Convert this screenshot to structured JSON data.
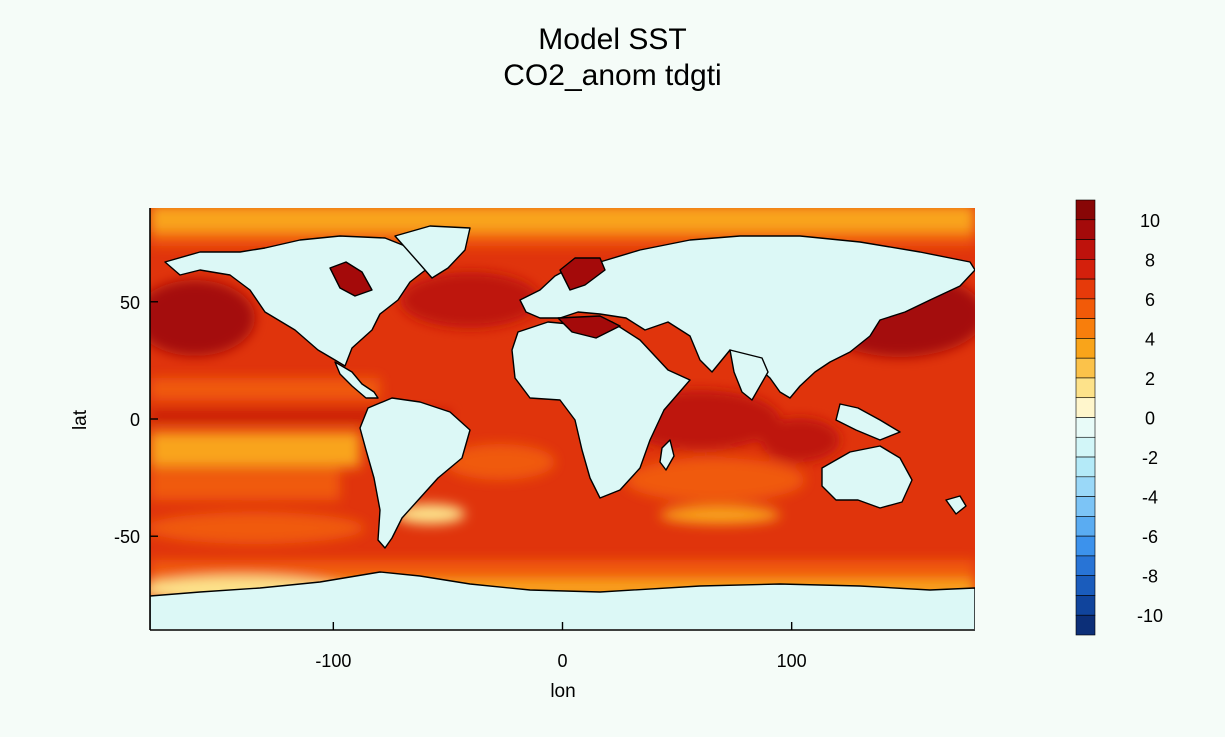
{
  "title": "Model SST",
  "subtitle": "CO2_anom tdgti",
  "chart_data": {
    "type": "heatmap",
    "title": "Model SST",
    "subtitle": "CO2_anom tdgti",
    "xlabel": "lon",
    "ylabel": "lat",
    "xlim": [
      -180,
      180
    ],
    "ylim": [
      -90,
      90
    ],
    "xticks": [
      -100,
      0,
      100
    ],
    "yticks": [
      -50,
      0,
      50
    ],
    "xtick_labels": [
      "-100",
      "0",
      "100"
    ],
    "ytick_labels": [
      "-50",
      "0",
      "50"
    ],
    "colorbar": {
      "levels": [
        -11,
        -10,
        -9,
        -8,
        -7,
        -6,
        -5,
        -4,
        -3,
        -2,
        -1,
        0,
        1,
        2,
        3,
        4,
        5,
        6,
        7,
        8,
        9,
        10,
        11
      ],
      "colors": [
        "#0c2f78",
        "#10449c",
        "#1a5cbc",
        "#2874d6",
        "#3c92ec",
        "#5aacf2",
        "#7cc4f6",
        "#9ad8f8",
        "#b4eaf8",
        "#d2f6f8",
        "#e8fbf8",
        "#fff6cc",
        "#fde28a",
        "#fbc24a",
        "#f9a41a",
        "#f87e0c",
        "#f25a08",
        "#e63a0a",
        "#d4200c",
        "#be120c",
        "#a40a0a",
        "#880606"
      ],
      "tick_labels": [
        "10",
        "8",
        "6",
        "4",
        "2",
        "0",
        "-2",
        "-4",
        "-6",
        "-8",
        "-10"
      ],
      "tick_values": [
        10,
        8,
        6,
        4,
        2,
        0,
        -2,
        -4,
        -6,
        -8,
        -10
      ]
    },
    "land_color": "#dcf8f6",
    "ocean_colors": [
      "#e0340c",
      "#f05a0a",
      "#f9a41a",
      "#fde28a",
      "#a40a0a"
    ]
  }
}
